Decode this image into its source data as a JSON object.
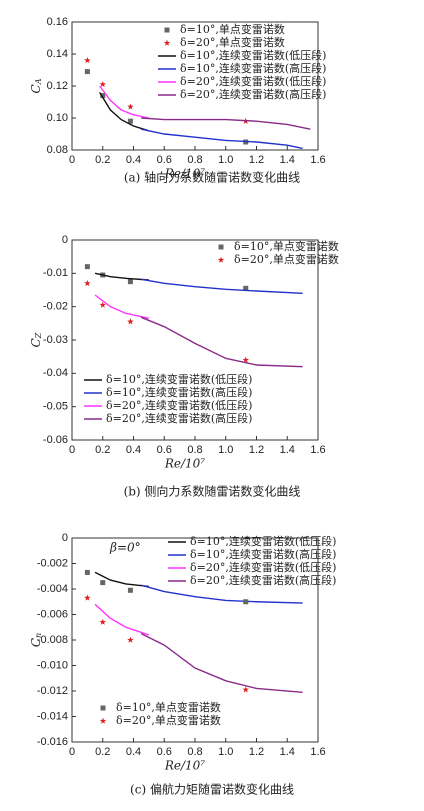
{
  "chart_data": [
    {
      "type": "line",
      "ylabel": [
        "C",
        "A"
      ],
      "xlabel": "Re/10⁷",
      "caption": "(a) 轴向力系数随雷诺数变化曲线",
      "xlim": [
        0,
        1.6
      ],
      "xticks": [
        0,
        0.2,
        0.4,
        0.6,
        0.8,
        {
          "value": 1,
          "label": "1.0"
        },
        1.2,
        1.4,
        1.6
      ],
      "ylim": [
        0.08,
        0.16
      ],
      "yticks": [
        {
          "value": 0.08,
          "label": "0.08"
        },
        {
          "value": 0.1,
          "label": "0.10"
        },
        {
          "value": 0.12,
          "label": "0.12"
        },
        {
          "value": 0.14,
          "label": "0.14"
        },
        {
          "value": 0.16,
          "label": "0.16"
        }
      ],
      "series": [
        {
          "name": "δ=10°,单点变雷诺数",
          "style": "scatter",
          "marker": "square",
          "color": "#666666",
          "legend": "upper right",
          "x": [
            0.1,
            0.2,
            0.38,
            1.13
          ],
          "values": [
            0.129,
            0.114,
            0.098,
            0.085
          ]
        },
        {
          "name": "δ=20°,单点变雷诺数",
          "style": "scatter",
          "marker": "star",
          "color": "#e02020",
          "legend": "upper right",
          "x": [
            0.1,
            0.2,
            0.38,
            1.13
          ],
          "values": [
            0.136,
            0.121,
            0.107,
            0.098
          ]
        },
        {
          "name": "δ=10°,连续变雷诺数(低压段)",
          "style": "line",
          "color": "#111111",
          "legend": "upper right",
          "x": [
            0.18,
            0.25,
            0.32,
            0.4,
            0.5
          ],
          "values": [
            0.116,
            0.105,
            0.099,
            0.095,
            0.092
          ]
        },
        {
          "name": "δ=10°,连续变雷诺数(高压段)",
          "style": "line",
          "color": "#2233cc",
          "legend": "upper right",
          "x": [
            0.45,
            0.6,
            0.8,
            1.0,
            1.2,
            1.4,
            1.5
          ],
          "values": [
            0.093,
            0.09,
            0.088,
            0.086,
            0.085,
            0.083,
            0.081
          ]
        },
        {
          "name": "δ=20°,连续变雷诺数(低压段)",
          "style": "line",
          "color": "#ff33ff",
          "legend": "upper right",
          "x": [
            0.18,
            0.25,
            0.32,
            0.4,
            0.5
          ],
          "values": [
            0.12,
            0.111,
            0.105,
            0.102,
            0.1
          ]
        },
        {
          "name": "δ=20°,连续变雷诺数(高压段)",
          "style": "line",
          "color": "#8a2a8a",
          "legend": "upper right",
          "x": [
            0.45,
            0.6,
            0.8,
            1.0,
            1.2,
            1.4,
            1.55
          ],
          "values": [
            0.1,
            0.099,
            0.099,
            0.099,
            0.098,
            0.096,
            0.093
          ]
        }
      ]
    },
    {
      "type": "line",
      "ylabel": [
        "C",
        "Z"
      ],
      "xlabel": "Re/10⁷",
      "caption": "(b) 侧向力系数随雷诺数变化曲线",
      "xlim": [
        0,
        1.6
      ],
      "xticks": [
        0,
        0.2,
        0.4,
        0.6,
        0.8,
        {
          "value": 1,
          "label": "1.0"
        },
        1.2,
        1.4,
        1.6
      ],
      "ylim": [
        -0.06,
        0
      ],
      "yticks": [
        0,
        -0.01,
        -0.02,
        -0.03,
        -0.04,
        -0.05,
        -0.06
      ],
      "series": [
        {
          "name": "δ=10°,单点变雷诺数",
          "style": "scatter",
          "marker": "square",
          "color": "#666666",
          "legend": "upper right",
          "x": [
            0.1,
            0.2,
            0.38,
            1.13
          ],
          "values": [
            -0.008,
            -0.0105,
            -0.0125,
            -0.0145
          ]
        },
        {
          "name": "δ=20°,单点变雷诺数",
          "style": "scatter",
          "marker": "star",
          "color": "#e02020",
          "legend": "upper right",
          "x": [
            0.1,
            0.2,
            0.38,
            1.13
          ],
          "values": [
            -0.013,
            -0.0195,
            -0.0245,
            -0.036
          ]
        },
        {
          "name": "δ=10°,连续变雷诺数(低压段)",
          "style": "line",
          "color": "#111111",
          "legend": "lower left",
          "x": [
            0.15,
            0.25,
            0.35,
            0.5
          ],
          "values": [
            -0.01,
            -0.011,
            -0.0115,
            -0.012
          ]
        },
        {
          "name": "δ=10°,连续变雷诺数(高压段)",
          "style": "line",
          "color": "#2233cc",
          "legend": "lower left",
          "x": [
            0.45,
            0.6,
            0.8,
            1.0,
            1.2,
            1.5
          ],
          "values": [
            -0.0118,
            -0.013,
            -0.014,
            -0.0148,
            -0.0153,
            -0.016
          ]
        },
        {
          "name": "δ=20°,连续变雷诺数(低压段)",
          "style": "line",
          "color": "#ff33ff",
          "legend": "lower left",
          "x": [
            0.15,
            0.25,
            0.35,
            0.5
          ],
          "values": [
            -0.0165,
            -0.02,
            -0.022,
            -0.0235
          ]
        },
        {
          "name": "δ=20°,连续变雷诺数(高压段)",
          "style": "line",
          "color": "#8a2a8a",
          "legend": "lower left",
          "x": [
            0.45,
            0.6,
            0.8,
            1.0,
            1.2,
            1.5
          ],
          "values": [
            -0.0232,
            -0.026,
            -0.031,
            -0.0355,
            -0.0375,
            -0.038
          ]
        }
      ]
    },
    {
      "type": "line",
      "ylabel": [
        "C",
        "n"
      ],
      "xlabel": "Re/10⁷",
      "caption": "(c) 偏航力矩随雷诺数变化曲线",
      "annotation": "β=0°",
      "xlim": [
        0,
        1.6
      ],
      "xticks": [
        0,
        0.2,
        0.4,
        0.6,
        0.8,
        {
          "value": 1,
          "label": "1.0"
        },
        1.2,
        1.4,
        1.6
      ],
      "ylim": [
        -0.016,
        0
      ],
      "yticks": [
        0,
        -0.002,
        -0.004,
        -0.006,
        -0.008,
        {
          "value": -0.01,
          "label": "-0.010"
        },
        -0.012,
        -0.014,
        -0.016
      ],
      "series": [
        {
          "name": "δ=10°,连续变雷诺数(低压段)",
          "style": "line",
          "color": "#111111",
          "legend": "upper right",
          "x": [
            0.15,
            0.25,
            0.35,
            0.5
          ],
          "values": [
            -0.0027,
            -0.0033,
            -0.0036,
            -0.0038
          ]
        },
        {
          "name": "δ=10°,连续变雷诺数(高压段)",
          "style": "line",
          "color": "#2233cc",
          "legend": "upper right",
          "x": [
            0.45,
            0.6,
            0.8,
            1.0,
            1.2,
            1.5
          ],
          "values": [
            -0.0037,
            -0.0042,
            -0.0046,
            -0.0049,
            -0.005,
            -0.0051
          ]
        },
        {
          "name": "δ=20°,连续变雷诺数(低压段)",
          "style": "line",
          "color": "#ff33ff",
          "legend": "upper right",
          "x": [
            0.15,
            0.25,
            0.35,
            0.5
          ],
          "values": [
            -0.0052,
            -0.0063,
            -0.007,
            -0.0076
          ]
        },
        {
          "name": "δ=20°,连续变雷诺数(高压段)",
          "style": "line",
          "color": "#8a2a8a",
          "legend": "upper right",
          "x": [
            0.45,
            0.6,
            0.8,
            1.0,
            1.2,
            1.5
          ],
          "values": [
            -0.0075,
            -0.0084,
            -0.0102,
            -0.0112,
            -0.0118,
            -0.0121
          ]
        },
        {
          "name": "δ=10°,单点变雷诺数",
          "style": "scatter",
          "marker": "square",
          "color": "#666666",
          "legend": "lower left",
          "x": [
            0.1,
            0.2,
            0.38,
            1.13
          ],
          "values": [
            -0.0027,
            -0.0035,
            -0.0041,
            -0.005
          ]
        },
        {
          "name": "δ=20°,单点变雷诺数",
          "style": "scatter",
          "marker": "star",
          "color": "#e02020",
          "legend": "lower left",
          "x": [
            0.1,
            0.2,
            0.38,
            1.13
          ],
          "values": [
            -0.0047,
            -0.0066,
            -0.008,
            -0.0119
          ]
        }
      ]
    }
  ]
}
